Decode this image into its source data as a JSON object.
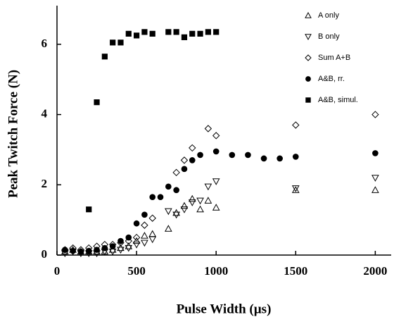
{
  "chart_data": {
    "type": "scatter",
    "xlabel": "Pulse Width (µs)",
    "ylabel": "Peak Twitch Force (N)",
    "xlim": [
      0,
      2100
    ],
    "ylim": [
      0,
      7.1
    ],
    "xticks": [
      0,
      500,
      1000,
      1500,
      2000
    ],
    "yticks": [
      0,
      2,
      4,
      6
    ],
    "legend": "upper right",
    "series": [
      {
        "name": "A only",
        "marker": "triangle-up",
        "color": "#000000",
        "filled": false,
        "x": [
          50,
          100,
          150,
          200,
          250,
          300,
          350,
          400,
          450,
          500,
          550,
          600,
          700,
          750,
          800,
          850,
          900,
          950,
          1000,
          1500,
          2000
        ],
        "values": [
          0.1,
          0.15,
          0.1,
          0.1,
          0.1,
          0.1,
          0.15,
          0.2,
          0.25,
          0.4,
          0.55,
          0.6,
          0.75,
          1.2,
          1.4,
          1.6,
          1.3,
          1.55,
          1.35,
          1.85,
          1.85
        ]
      },
      {
        "name": "B only",
        "marker": "triangle-down",
        "color": "#000000",
        "filled": false,
        "x": [
          50,
          100,
          150,
          200,
          250,
          300,
          350,
          400,
          450,
          500,
          550,
          600,
          700,
          750,
          800,
          850,
          900,
          950,
          1000,
          1500,
          2000
        ],
        "values": [
          0.05,
          0.1,
          0.05,
          0.05,
          0.05,
          0.1,
          0.1,
          0.15,
          0.2,
          0.3,
          0.35,
          0.45,
          1.25,
          1.15,
          1.3,
          1.5,
          1.55,
          1.95,
          2.1,
          1.9,
          2.2
        ]
      },
      {
        "name": "Sum A+B",
        "marker": "diamond",
        "color": "#000000",
        "filled": false,
        "x": [
          50,
          100,
          150,
          200,
          250,
          300,
          350,
          400,
          450,
          500,
          550,
          600,
          750,
          800,
          850,
          950,
          1000,
          1500,
          2000
        ],
        "values": [
          0.15,
          0.2,
          0.15,
          0.2,
          0.25,
          0.3,
          0.3,
          0.35,
          0.4,
          0.5,
          0.85,
          1.05,
          2.35,
          2.7,
          3.05,
          3.6,
          3.4,
          3.7,
          4.0
        ]
      },
      {
        "name": "A&B, rr.",
        "marker": "circle",
        "color": "#000000",
        "filled": true,
        "x": [
          50,
          100,
          150,
          200,
          250,
          300,
          350,
          400,
          450,
          500,
          550,
          600,
          650,
          700,
          750,
          800,
          850,
          900,
          1000,
          1100,
          1200,
          1300,
          1400,
          1500,
          2000
        ],
        "values": [
          0.15,
          0.12,
          0.1,
          0.12,
          0.15,
          0.2,
          0.25,
          0.4,
          0.5,
          0.9,
          1.15,
          1.65,
          1.65,
          1.95,
          1.85,
          2.45,
          2.7,
          2.85,
          2.95,
          2.85,
          2.85,
          2.75,
          2.75,
          2.8,
          2.9
        ]
      },
      {
        "name": "A&B, simul.",
        "marker": "square",
        "color": "#000000",
        "filled": true,
        "x": [
          200,
          250,
          300,
          350,
          400,
          450,
          500,
          550,
          600,
          700,
          750,
          800,
          850,
          900,
          950,
          1000
        ],
        "values": [
          1.3,
          4.35,
          5.65,
          6.05,
          6.05,
          6.3,
          6.25,
          6.35,
          6.3,
          6.35,
          6.35,
          6.2,
          6.3,
          6.3,
          6.35,
          6.35
        ]
      }
    ]
  }
}
